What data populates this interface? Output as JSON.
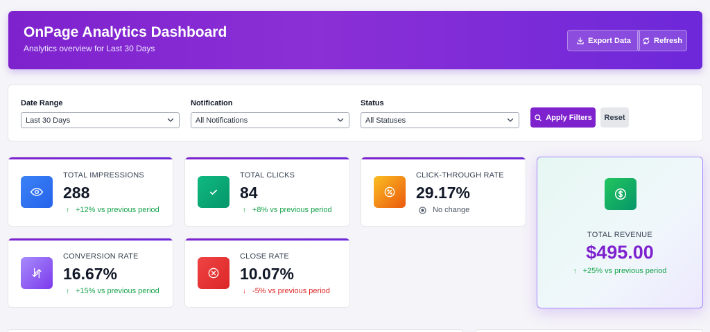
{
  "header": {
    "title": "OnPage Analytics Dashboard",
    "subtitle": "Analytics overview for Last 30 Days",
    "export_label": "Export Data",
    "refresh_label": "Refresh"
  },
  "filters": {
    "date_range": {
      "label": "Date Range",
      "value": "Last 30 Days"
    },
    "notification": {
      "label": "Notification",
      "value": "All Notifications"
    },
    "status": {
      "label": "Status",
      "value": "All Statuses"
    },
    "apply_label": "Apply Filters",
    "reset_label": "Reset"
  },
  "cards": {
    "impressions": {
      "label": "TOTAL IMPRESSIONS",
      "value": "288",
      "trend": "+12% vs previous period",
      "icon": "eye-icon",
      "color": "#2563eb"
    },
    "clicks": {
      "label": "TOTAL CLICKS",
      "value": "84",
      "trend": "+8% vs previous period",
      "icon": "check-icon",
      "color": "#059669"
    },
    "ctr": {
      "label": "CLICK-THROUGH RATE",
      "value": "29.17%",
      "trend": "No change",
      "icon": "percent-icon",
      "color": "#f59e0b"
    },
    "conversion": {
      "label": "CONVERSION RATE",
      "value": "16.67%",
      "trend": "+15% vs previous period",
      "icon": "exchange-icon",
      "color": "#8b5cf6"
    },
    "close": {
      "label": "CLOSE RATE",
      "value": "10.07%",
      "trend": "-5% vs previous period",
      "icon": "x-circle-icon",
      "color": "#dc2626"
    }
  },
  "revenue": {
    "label": "TOTAL REVENUE",
    "value": "$495.00",
    "trend": "+25% vs previous period",
    "icon": "dollar-icon",
    "color": "#7e22ce"
  }
}
